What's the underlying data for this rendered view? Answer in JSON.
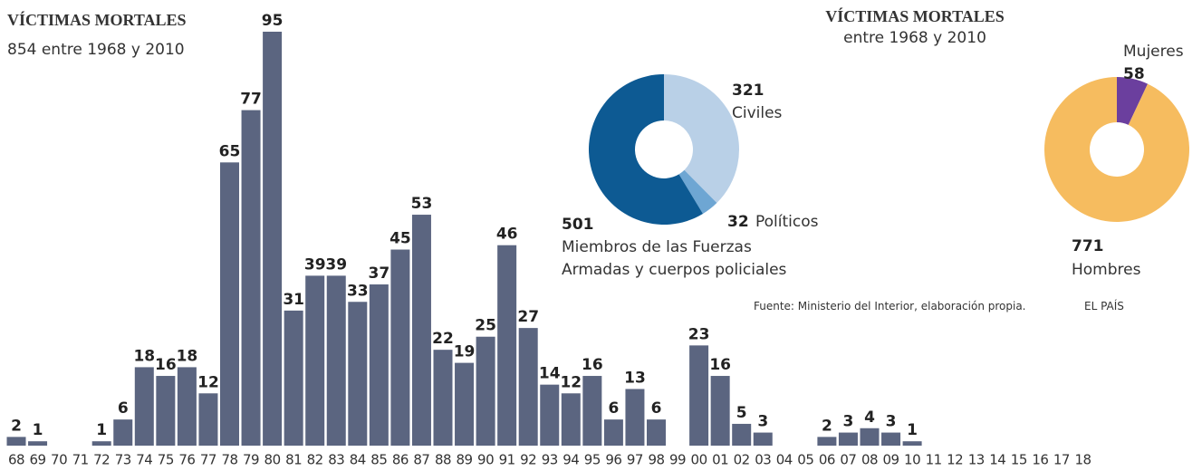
{
  "chart_data": [
    {
      "type": "bar",
      "title": "VÍCTIMAS MORTALES",
      "subtitle": "854 entre 1968 y 2010",
      "categories": [
        "68",
        "69",
        "70",
        "71",
        "72",
        "73",
        "74",
        "75",
        "76",
        "77",
        "78",
        "79",
        "80",
        "81",
        "82",
        "83",
        "84",
        "85",
        "86",
        "87",
        "88",
        "89",
        "90",
        "91",
        "92",
        "93",
        "94",
        "95",
        "96",
        "97",
        "98",
        "99",
        "00",
        "01",
        "02",
        "03",
        "04",
        "05",
        "06",
        "07",
        "08",
        "09",
        "10",
        "11",
        "12",
        "13",
        "14",
        "15",
        "16",
        "17",
        "18"
      ],
      "values": [
        2,
        1,
        null,
        null,
        1,
        6,
        18,
        16,
        18,
        12,
        65,
        77,
        95,
        31,
        39,
        39,
        33,
        37,
        45,
        53,
        22,
        19,
        25,
        46,
        27,
        14,
        12,
        16,
        6,
        13,
        6,
        null,
        23,
        16,
        5,
        3,
        null,
        null,
        2,
        3,
        4,
        3,
        1,
        null,
        null,
        null,
        null,
        null,
        null,
        null,
        null
      ],
      "color": "#5b6580"
    },
    {
      "type": "pie",
      "title": "VÍCTIMAS MORTALES",
      "subtitle": "entre 1968 y 2010",
      "categories": [
        "Civiles",
        "Políticos",
        "Miembros de las Fuerzas Armadas y cuerpos policiales"
      ],
      "values": [
        321,
        32,
        501
      ],
      "colors": [
        "#b9d0e7",
        "#6ea6d3",
        "#0d5a93"
      ],
      "source": "Fuente: Ministerio del Interior, elaboración propia.",
      "credit": "EL PAÍS"
    },
    {
      "type": "pie",
      "categories": [
        "Mujeres",
        "Hombres"
      ],
      "values": [
        58,
        771
      ],
      "colors": [
        "#6b3f9e",
        "#f6bc5f"
      ]
    }
  ]
}
